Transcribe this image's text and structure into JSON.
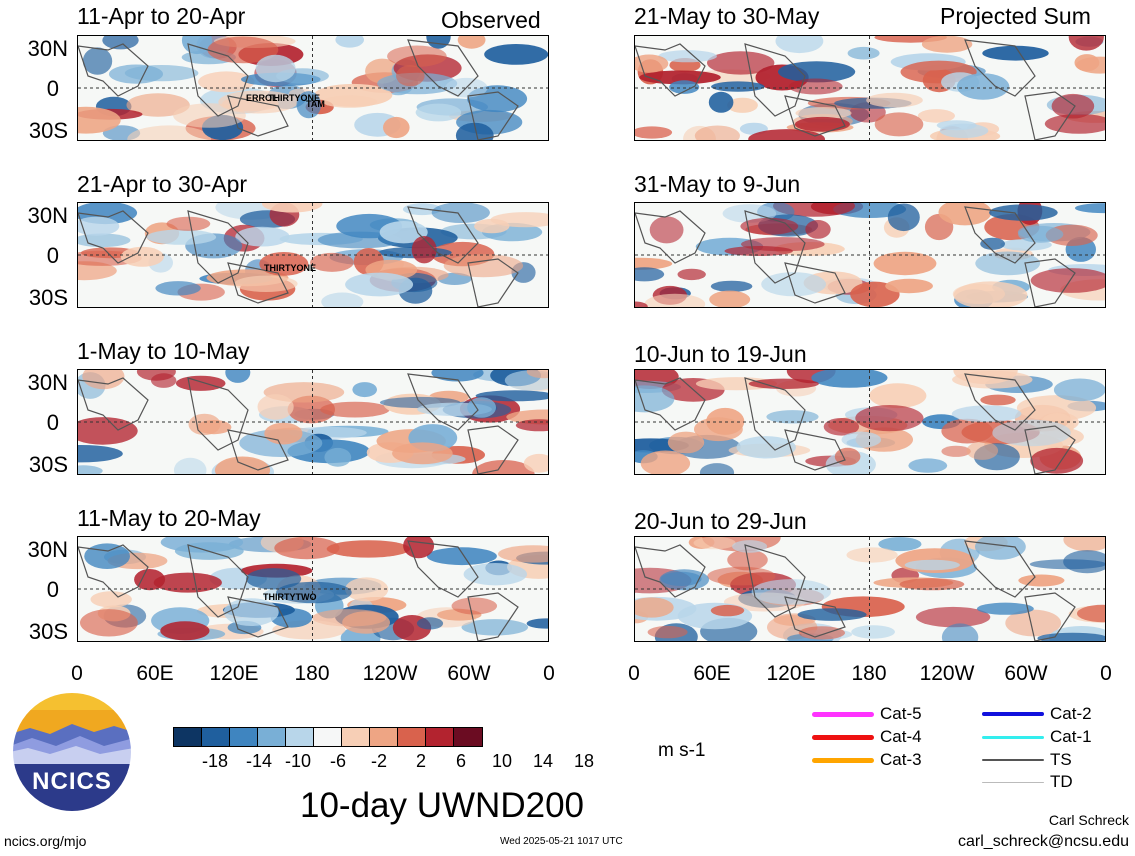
{
  "observed_label": "Observed",
  "projected_label": "Projected Sum",
  "panels_left": [
    {
      "title": "11-Apr to 20-Apr"
    },
    {
      "title": "21-Apr to 30-Apr"
    },
    {
      "title": "1-May to 10-May"
    },
    {
      "title": "11-May to 20-May"
    }
  ],
  "panels_right": [
    {
      "title": "21-May to 30-May"
    },
    {
      "title": "31-May to 9-Jun"
    },
    {
      "title": "10-Jun to 19-Jun"
    },
    {
      "title": "20-Jun to 29-Jun"
    }
  ],
  "storms": [
    {
      "panel": 0,
      "text": "ERROL"
    },
    {
      "panel": 0,
      "text": "THIRTYONE"
    },
    {
      "panel": 0,
      "text": "TAM"
    },
    {
      "panel": 1,
      "text": "THIRTYONE"
    },
    {
      "panel": 3,
      "text": "THIRTYTWO"
    }
  ],
  "chart_data": {
    "type": "heatmap",
    "title": "10-day UWND200",
    "units": "m s-1",
    "y_ticks": [
      "30N",
      "0",
      "30S"
    ],
    "x_ticks": [
      "0",
      "60E",
      "120E",
      "180",
      "120W",
      "60W",
      "0"
    ],
    "colorbar": {
      "labels": [
        "-18",
        "-14",
        "-10",
        "-6",
        "-2",
        "2",
        "6",
        "10",
        "14",
        "18"
      ],
      "colors": [
        "#0d3563",
        "#1f5f9e",
        "#3f85c0",
        "#79afd6",
        "#b8d6ea",
        "#f6f7f7",
        "#f7cfb6",
        "#eea584",
        "#d9624d",
        "#b3232f",
        "#6b0c22"
      ]
    },
    "legend": [
      {
        "name": "Cat-5",
        "color": "#ff33ff"
      },
      {
        "name": "Cat-4",
        "color": "#ee1111"
      },
      {
        "name": "Cat-3",
        "color": "#ffa500"
      },
      {
        "name": "Cat-2",
        "color": "#1111dd"
      },
      {
        "name": "Cat-1",
        "color": "#33eeee"
      },
      {
        "name": "TS",
        "color": "#555555"
      },
      {
        "name": "TD",
        "color": "#bbbbbb"
      }
    ]
  },
  "footer": {
    "logo_text": "NCICS",
    "url": "ncics.org/mjo",
    "timestamp": "Wed 2025-05-21 1017 UTC",
    "author": "Carl Schreck",
    "email": "carl_schreck@ncsu.edu"
  }
}
